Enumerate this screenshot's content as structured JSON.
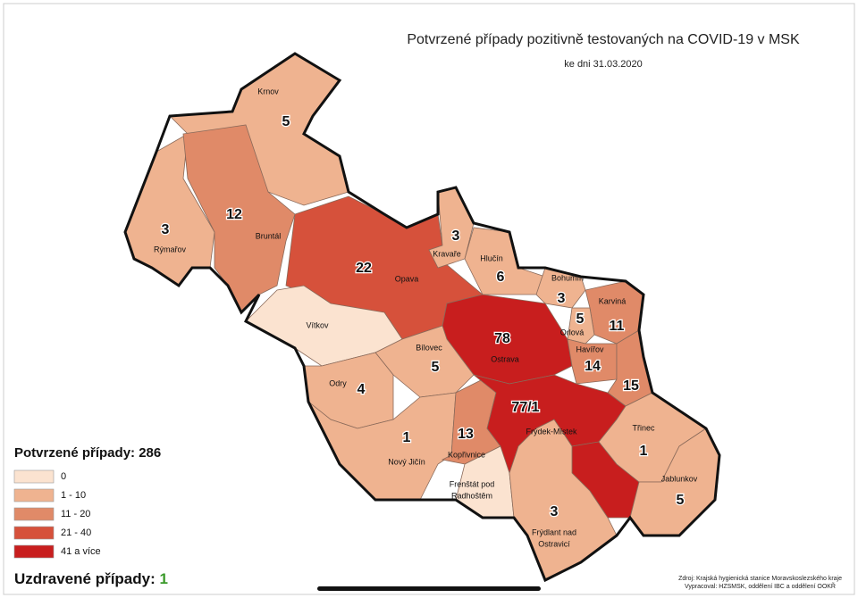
{
  "header": {
    "title": "Potvrzené případy pozitivně testovaných na COVID-19 v MSK",
    "subtitle": "ke dni 31.03.2020"
  },
  "regions": [
    {
      "name": [
        "Krnov"
      ],
      "value": 5,
      "color": "#efb390"
    },
    {
      "name": [
        "Rýmařov"
      ],
      "value": 3,
      "color": "#efb390"
    },
    {
      "name": [
        "Bruntál"
      ],
      "value": 12,
      "color": "#e08a68"
    },
    {
      "name": [
        "Opava"
      ],
      "value": 22,
      "color": "#d6513b"
    },
    {
      "name": [
        "Vítkov"
      ],
      "color": "#fbe3d0"
    },
    {
      "name": [
        "Kravaře"
      ],
      "value": 3,
      "color": "#efb390"
    },
    {
      "name": [
        "Hlučín"
      ],
      "value": 6,
      "color": "#efb390"
    },
    {
      "name": [
        "Bohumín"
      ],
      "value": 3,
      "color": "#efb390"
    },
    {
      "name": [
        "Karviná"
      ],
      "value": 11,
      "color": "#e08a68"
    },
    {
      "name": [
        "Orlová"
      ],
      "value": 5,
      "color": "#efb390"
    },
    {
      "name": [
        "Ostrava"
      ],
      "value": 78,
      "color": "#c81e1e"
    },
    {
      "name": [
        "Havířov"
      ],
      "value": 14,
      "color": "#e08a68"
    },
    {
      "value": 15,
      "color": "#e08a68"
    },
    {
      "name": [
        "Bílovec"
      ],
      "value": 5,
      "color": "#efb390"
    },
    {
      "name": [
        "Odry"
      ],
      "value": 4,
      "color": "#efb390"
    },
    {
      "name": [
        "Nový Jičín"
      ],
      "value": 1,
      "color": "#efb390"
    },
    {
      "name": [
        "Kopřivnice"
      ],
      "value": 13,
      "color": "#e08a68"
    },
    {
      "name": [
        "Frýdek-Místek"
      ],
      "value_label": "77/1",
      "color": "#c81e1e"
    },
    {
      "name": [
        "Frenštát pod",
        "Radhoštěm"
      ],
      "color": "#fbe3d0"
    },
    {
      "name": [
        "Frýdlant nad",
        "Ostravicí"
      ],
      "value": 3,
      "color": "#efb390"
    },
    {
      "name": [
        "Třinec"
      ],
      "value": 1,
      "color": "#efb390"
    },
    {
      "name": [
        "Jablunkov"
      ],
      "value": 5,
      "color": "#efb390"
    }
  ],
  "legend": {
    "title": "Potvrzené případy:",
    "total": 286,
    "items": [
      {
        "label": "0",
        "color": "#fbe3d0"
      },
      {
        "label": "1 - 10",
        "color": "#efb390"
      },
      {
        "label": "11 - 20",
        "color": "#e08a68"
      },
      {
        "label": "21 - 40",
        "color": "#d6513b"
      },
      {
        "label": "41 a více",
        "color": "#c81e1e"
      }
    ]
  },
  "recovered": {
    "label": "Uzdravené případy:",
    "value": 1,
    "color": "#3a9a2a"
  },
  "source": [
    "Zdroj: Krajská hygienická stanice Moravskoslezského kraje",
    "Vypracoval: HZSMSK, oddělení IBC a oddělení OOKŘ"
  ]
}
